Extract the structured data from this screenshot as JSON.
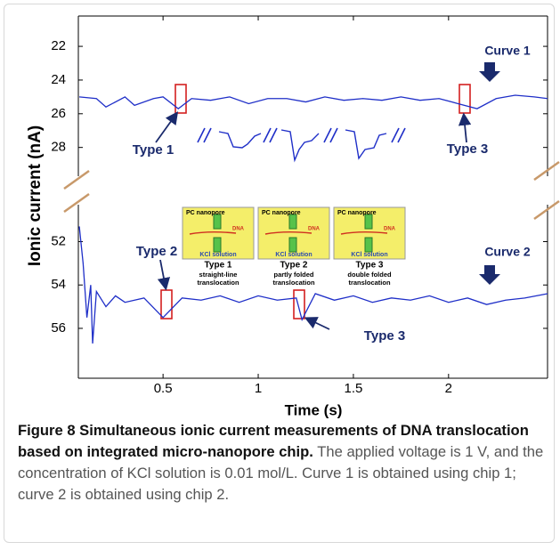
{
  "chart_data": [
    {
      "type": "line",
      "ylabel": "Ionic current (nA)",
      "y_inverted": true,
      "xlim": [
        0.055,
        2.52
      ],
      "ylim": [
        20.2,
        30.5
      ],
      "yticks": [
        22,
        24,
        26,
        28
      ],
      "annotations": [
        "Type 1",
        "Type 3"
      ],
      "series": [
        {
          "name": "Curve 1",
          "color": "#1f2fc8",
          "x": [
            0.06,
            0.15,
            0.2,
            0.3,
            0.35,
            0.45,
            0.5,
            0.58,
            0.65,
            0.75,
            0.85,
            0.95,
            1.05,
            1.15,
            1.25,
            1.35,
            1.45,
            1.55,
            1.65,
            1.75,
            1.85,
            1.95,
            2.05,
            2.15,
            2.25,
            2.35,
            2.45,
            2.52
          ],
          "values": [
            25.0,
            25.1,
            25.6,
            25.0,
            25.5,
            25.1,
            25.0,
            25.7,
            25.1,
            25.2,
            25.0,
            25.4,
            25.1,
            25.1,
            25.3,
            25.0,
            25.2,
            25.1,
            25.2,
            25.0,
            25.2,
            25.1,
            25.4,
            25.7,
            25.1,
            24.9,
            25.0,
            25.1
          ]
        }
      ]
    },
    {
      "type": "line",
      "xlabel": "Time (s)",
      "y_inverted": true,
      "xlim": [
        0.055,
        2.52
      ],
      "xticks": [
        0.5,
        1,
        1.5,
        2
      ],
      "ylim": [
        49.6,
        58.3
      ],
      "yticks": [
        52,
        54,
        56
      ],
      "annotations": [
        "Type 2",
        "Type 3"
      ],
      "series": [
        {
          "name": "Curve 2",
          "color": "#1f2fc8",
          "x": [
            0.06,
            0.08,
            0.1,
            0.12,
            0.13,
            0.15,
            0.2,
            0.25,
            0.3,
            0.4,
            0.5,
            0.6,
            0.7,
            0.8,
            0.9,
            1.0,
            1.1,
            1.2,
            1.23,
            1.3,
            1.4,
            1.5,
            1.6,
            1.7,
            1.8,
            1.9,
            2.0,
            2.1,
            2.2,
            2.3,
            2.4,
            2.52
          ],
          "values": [
            51.3,
            53.0,
            55.5,
            54.0,
            56.7,
            54.3,
            55.0,
            54.5,
            54.8,
            54.6,
            55.5,
            54.6,
            54.7,
            54.5,
            54.8,
            54.5,
            54.7,
            54.6,
            55.6,
            54.4,
            54.7,
            54.5,
            54.8,
            54.6,
            54.7,
            54.5,
            54.8,
            54.6,
            54.9,
            54.7,
            54.6,
            54.4
          ]
        }
      ]
    }
  ],
  "inset": [
    {
      "pore": "PC nanopore",
      "dna": "DNA",
      "solution": "KCl solution",
      "title": "Type 1",
      "desc": [
        "straight-line",
        "translocation"
      ]
    },
    {
      "pore": "PC nanopore",
      "dna": "DNA",
      "solution": "KCl solution",
      "title": "Type 2",
      "desc": [
        "partly folded",
        "translocation"
      ]
    },
    {
      "pore": "PC nanopore",
      "dna": "DNA",
      "solution": "KCl solution",
      "title": "Type 3",
      "desc": [
        "double folded",
        "translocation"
      ]
    }
  ],
  "caption": {
    "title": "Figure 8 Simultaneous ionic current measurements of DNA translocation based on integrated micro-nanopore chip.",
    "text": "The applied voltage is 1 V, and the concentration of KCl solution is 0.01 mol/L. Curve 1 is obtained using chip 1; curve 2 is obtained using chip 2."
  }
}
